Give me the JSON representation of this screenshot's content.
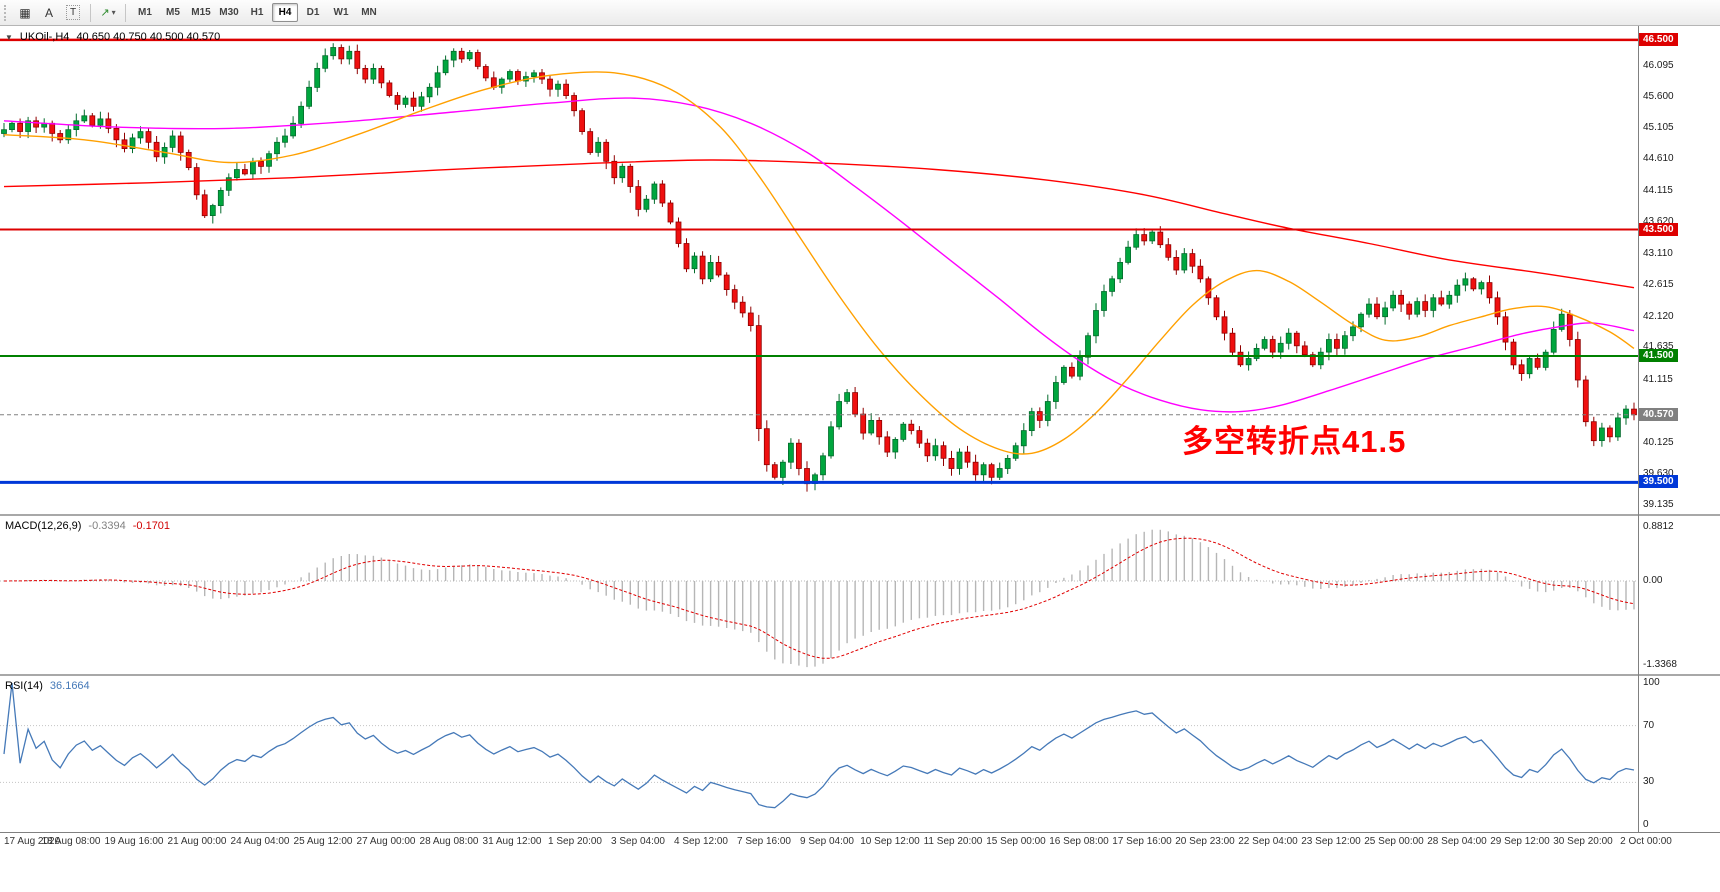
{
  "toolbar": {
    "tile_glyph": "▦",
    "a_label": "A",
    "t_label": "T",
    "draw_glyph": "↗",
    "caret_glyph": "▾",
    "timeframes": [
      "M1",
      "M5",
      "M15",
      "M30",
      "H1",
      "H4",
      "D1",
      "W1",
      "MN"
    ],
    "active_timeframe": "H4"
  },
  "header": {
    "marker": "▼",
    "symbol": "UKOil-,H4",
    "ohlc": "40.650 40.750 40.500 40.570"
  },
  "chart_data": {
    "type": "candlestick",
    "symbol": "UKOil-",
    "timeframe": "H4",
    "price_range": [
      39.0,
      46.72
    ],
    "colors": {
      "up": "#00a63e",
      "down": "#ef1010",
      "up_border": "#036b2c",
      "down_border": "#8f0000"
    },
    "closes": [
      45.08,
      45.18,
      45.05,
      45.22,
      45.12,
      45.18,
      45.02,
      44.92,
      45.08,
      45.22,
      45.3,
      45.15,
      45.25,
      45.1,
      44.92,
      44.78,
      44.95,
      45.05,
      44.88,
      44.65,
      44.8,
      44.98,
      44.72,
      44.48,
      44.05,
      43.72,
      43.88,
      44.12,
      44.32,
      44.45,
      44.38,
      44.58,
      44.5,
      44.7,
      44.88,
      44.98,
      45.18,
      45.45,
      45.75,
      46.05,
      46.25,
      46.38,
      46.2,
      46.32,
      46.05,
      45.88,
      46.05,
      45.82,
      45.62,
      45.48,
      45.58,
      45.45,
      45.6,
      45.75,
      45.98,
      46.18,
      46.32,
      46.2,
      46.3,
      46.08,
      45.9,
      45.75,
      45.88,
      46.0,
      45.85,
      45.92,
      45.98,
      45.88,
      45.72,
      45.8,
      45.62,
      45.38,
      45.05,
      44.72,
      44.88,
      44.58,
      44.32,
      44.5,
      44.18,
      43.82,
      43.98,
      44.22,
      43.92,
      43.62,
      43.28,
      42.88,
      43.08,
      42.72,
      42.98,
      42.78,
      42.55,
      42.35,
      42.18,
      41.98,
      40.35,
      39.78,
      39.58,
      39.82,
      40.12,
      39.72,
      39.48,
      39.62,
      39.92,
      40.38,
      40.78,
      40.92,
      40.58,
      40.28,
      40.48,
      40.22,
      39.98,
      40.18,
      40.42,
      40.32,
      40.12,
      39.92,
      40.08,
      39.88,
      39.72,
      39.98,
      39.82,
      39.62,
      39.78,
      39.58,
      39.72,
      39.88,
      40.08,
      40.32,
      40.62,
      40.48,
      40.78,
      41.08,
      41.32,
      41.18,
      41.48,
      41.82,
      42.22,
      42.52,
      42.72,
      42.98,
      43.22,
      43.42,
      43.32,
      43.46,
      43.26,
      43.06,
      42.86,
      43.12,
      42.92,
      42.72,
      42.42,
      42.12,
      41.86,
      41.56,
      41.36,
      41.46,
      41.62,
      41.76,
      41.56,
      41.7,
      41.86,
      41.66,
      41.52,
      41.36,
      41.56,
      41.76,
      41.62,
      41.82,
      41.96,
      42.16,
      42.32,
      42.12,
      42.26,
      42.46,
      42.32,
      42.16,
      42.36,
      42.22,
      42.42,
      42.32,
      42.46,
      42.62,
      42.72,
      42.56,
      42.66,
      42.42,
      42.12,
      41.72,
      41.36,
      41.22,
      41.46,
      41.32,
      41.56,
      41.92,
      42.16,
      41.76,
      41.12,
      40.46,
      40.16,
      40.36,
      40.22,
      40.52,
      40.66,
      40.57
    ],
    "levels": [
      {
        "label": "46.500",
        "price": 46.5,
        "color": "#dd0000",
        "width": 2.5
      },
      {
        "label": "43.500",
        "price": 43.5,
        "color": "#dd0000",
        "width": 2
      },
      {
        "label": "41.500",
        "price": 41.5,
        "color": "#008000",
        "width": 2
      },
      {
        "label": "39.500",
        "price": 39.5,
        "color": "#0038d8",
        "width": 3
      }
    ],
    "current_price": {
      "label": "40.570",
      "value": 40.57,
      "color": "#808080"
    },
    "price_axis_labels": [
      "46.095",
      "45.600",
      "45.105",
      "44.610",
      "44.115",
      "43.620",
      "43.110",
      "42.615",
      "42.120",
      "41.635",
      "41.115",
      "40.125",
      "39.630",
      "39.135"
    ],
    "moving_averages": [
      {
        "name": "ma-red-slow",
        "color": "#ff0000",
        "anchors": [
          [
            0,
            44.18
          ],
          [
            18,
            44.24
          ],
          [
            36,
            44.32
          ],
          [
            54,
            44.44
          ],
          [
            72,
            44.54
          ],
          [
            88,
            44.6
          ],
          [
            102,
            44.55
          ],
          [
            116,
            44.45
          ],
          [
            130,
            44.28
          ],
          [
            142,
            44.05
          ],
          [
            152,
            43.75
          ],
          [
            160,
            43.52
          ],
          [
            170,
            43.28
          ],
          [
            180,
            43.02
          ],
          [
            192,
            42.8
          ],
          [
            203,
            42.58
          ]
        ]
      },
      {
        "name": "ma-magenta",
        "color": "#ff00ff",
        "anchors": [
          [
            0,
            45.22
          ],
          [
            14,
            45.12
          ],
          [
            28,
            45.1
          ],
          [
            42,
            45.2
          ],
          [
            56,
            45.36
          ],
          [
            68,
            45.5
          ],
          [
            78,
            45.58
          ],
          [
            86,
            45.46
          ],
          [
            93,
            45.18
          ],
          [
            100,
            44.72
          ],
          [
            106,
            44.18
          ],
          [
            112,
            43.6
          ],
          [
            118,
            43.0
          ],
          [
            124,
            42.4
          ],
          [
            129,
            41.88
          ],
          [
            134,
            41.42
          ],
          [
            139,
            41.05
          ],
          [
            144,
            40.8
          ],
          [
            149,
            40.65
          ],
          [
            154,
            40.62
          ],
          [
            159,
            40.72
          ],
          [
            165,
            40.95
          ],
          [
            171,
            41.2
          ],
          [
            177,
            41.45
          ],
          [
            183,
            41.65
          ],
          [
            189,
            41.85
          ],
          [
            194,
            41.97
          ],
          [
            198,
            42.02
          ],
          [
            203,
            41.9
          ]
        ]
      },
      {
        "name": "ma-orange",
        "color": "#ffa000",
        "anchors": [
          [
            0,
            45.0
          ],
          [
            10,
            44.92
          ],
          [
            20,
            44.72
          ],
          [
            28,
            44.56
          ],
          [
            36,
            44.68
          ],
          [
            44,
            45.0
          ],
          [
            52,
            45.38
          ],
          [
            60,
            45.72
          ],
          [
            68,
            45.94
          ],
          [
            76,
            45.98
          ],
          [
            83,
            45.72
          ],
          [
            89,
            45.15
          ],
          [
            94,
            44.35
          ],
          [
            99,
            43.4
          ],
          [
            104,
            42.45
          ],
          [
            109,
            41.6
          ],
          [
            114,
            40.9
          ],
          [
            119,
            40.35
          ],
          [
            124,
            40.02
          ],
          [
            128,
            39.96
          ],
          [
            132,
            40.18
          ],
          [
            136,
            40.6
          ],
          [
            140,
            41.15
          ],
          [
            144,
            41.75
          ],
          [
            148,
            42.3
          ],
          [
            152,
            42.68
          ],
          [
            156,
            42.85
          ],
          [
            160,
            42.68
          ],
          [
            164,
            42.35
          ],
          [
            168,
            42.0
          ],
          [
            172,
            41.75
          ],
          [
            176,
            41.8
          ],
          [
            180,
            41.98
          ],
          [
            184,
            42.12
          ],
          [
            188,
            42.25
          ],
          [
            192,
            42.28
          ],
          [
            196,
            42.12
          ],
          [
            200,
            41.88
          ],
          [
            203,
            41.62
          ]
        ]
      }
    ],
    "macd": {
      "label": "MACD(12,26,9)",
      "main_value": "-0.3394",
      "signal_value": "-0.1701",
      "fast": 12,
      "slow": 26,
      "signal": 9,
      "axis_labels": [
        "0.8812",
        "0.00",
        "-1.3368"
      ],
      "histogram_color": "#b6b6b6",
      "signal_color": "#e00000"
    },
    "rsi": {
      "label": "RSI(14)",
      "value": "36.1664",
      "period": 14,
      "axis_labels": [
        "100",
        "70",
        "30",
        "0"
      ],
      "level_lines": [
        70,
        30
      ],
      "color": "#4579b8"
    },
    "time_axis": [
      "17 Aug 2020",
      "18 Aug 08:00",
      "19 Aug 16:00",
      "21 Aug 00:00",
      "24 Aug 04:00",
      "25 Aug 12:00",
      "27 Aug 00:00",
      "28 Aug 08:00",
      "31 Aug 12:00",
      "1 Sep 20:00",
      "3 Sep 04:00",
      "4 Sep 12:00",
      "7 Sep 16:00",
      "9 Sep 04:00",
      "10 Sep 12:00",
      "11 Sep 20:00",
      "15 Sep 00:00",
      "16 Sep 08:00",
      "17 Sep 16:00",
      "20 Sep 23:00",
      "22 Sep 04:00",
      "23 Sep 12:00",
      "25 Sep 00:00",
      "28 Sep 04:00",
      "29 Sep 12:00",
      "30 Sep 20:00",
      "2 Oct 00:00"
    ],
    "annotation": {
      "text": "多空转折点41.5",
      "color": "#ff0000"
    }
  }
}
